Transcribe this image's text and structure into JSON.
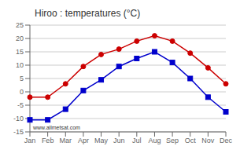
{
  "chart_data": {
    "type": "line",
    "title": "Hiroo : temperatures (°C)",
    "categories": [
      "Jan",
      "Feb",
      "Mar",
      "Apr",
      "May",
      "Jun",
      "Jul",
      "Aug",
      "Sep",
      "Oct",
      "Nov",
      "Dec"
    ],
    "series": [
      {
        "color": "#cc0000",
        "marker": "circle",
        "line_style": "solid",
        "values": [
          -2,
          -2,
          3,
          9.5,
          14,
          16,
          19,
          21,
          19,
          14.5,
          9,
          3
        ]
      },
      {
        "color": "#0000cc",
        "marker": "square",
        "line_style": "solid",
        "values": [
          -10.5,
          -10.5,
          -6.5,
          0.5,
          4.5,
          9.5,
          12.5,
          15,
          11,
          5,
          -2,
          -7.5
        ]
      }
    ],
    "ylim": [
      -15,
      25
    ],
    "yticks": [
      -15,
      -10,
      -5,
      0,
      5,
      10,
      15,
      20,
      25
    ],
    "grid": true,
    "annotations": [
      "www.allmetsat.com"
    ]
  }
}
